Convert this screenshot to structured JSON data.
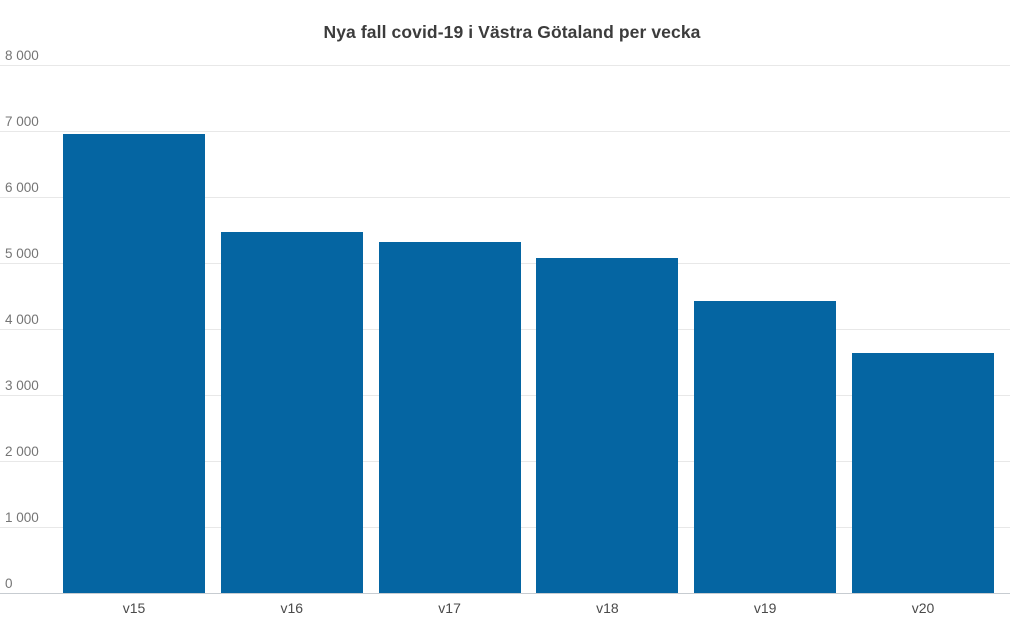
{
  "chart_data": {
    "type": "bar",
    "title": "Nya fall covid-19 i Västra Götaland per vecka",
    "xlabel": "",
    "ylabel": "",
    "categories": [
      "v15",
      "v16",
      "v17",
      "v18",
      "v19",
      "v20"
    ],
    "values": [
      6950,
      5470,
      5320,
      5080,
      4420,
      3640
    ],
    "ylim": [
      0,
      8000
    ],
    "yticks": [
      0,
      1000,
      2000,
      3000,
      4000,
      5000,
      6000,
      7000,
      8000
    ],
    "ytick_labels": [
      "0",
      "1 000",
      "2 000",
      "3 000",
      "4 000",
      "5 000",
      "6 000",
      "7 000",
      "8 000"
    ],
    "grid": true,
    "legend": false,
    "colors": {
      "bar": "#0565a2",
      "gridline": "#e8e8e8",
      "baseline": "#c7ccd1",
      "title_text": "#3c3c3c",
      "y_tick_text": "#757575",
      "x_tick_text": "#4a4a4a",
      "background": "#ffffff"
    }
  }
}
